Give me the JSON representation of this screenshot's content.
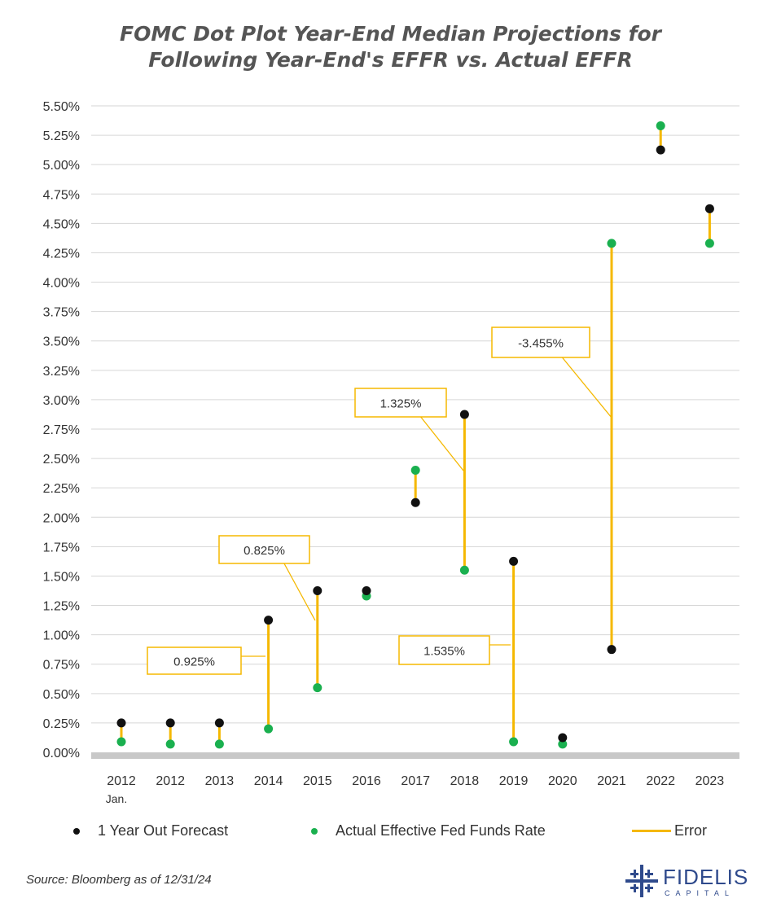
{
  "title": {
    "line1": "FOMC Dot Plot Year-End Median Projections for",
    "line2": "Following Year-End's EFFR vs. Actual EFFR"
  },
  "chart_data": {
    "type": "scatter",
    "categories": [
      "2012",
      "2012",
      "2013",
      "2014",
      "2015",
      "2016",
      "2017",
      "2018",
      "2019",
      "2020",
      "2021",
      "2022",
      "2023"
    ],
    "category_sublabels": [
      "Jan.",
      "",
      "",
      "",
      "",
      "",
      "",
      "",
      "",
      "",
      "",
      "",
      ""
    ],
    "y_ticks": [
      "0.00%",
      "0.25%",
      "0.50%",
      "0.75%",
      "1.00%",
      "1.25%",
      "1.50%",
      "1.75%",
      "2.00%",
      "2.25%",
      "2.50%",
      "2.75%",
      "3.00%",
      "3.25%",
      "3.50%",
      "3.75%",
      "4.00%",
      "4.25%",
      "4.50%",
      "4.75%",
      "5.00%",
      "5.25%",
      "5.50%"
    ],
    "ylim": [
      0,
      5.5
    ],
    "grid": true,
    "legend_position": "bottom",
    "series": [
      {
        "name": "1 Year Out Forecast",
        "color": "#111111",
        "values": [
          0.25,
          0.25,
          0.25,
          1.125,
          1.375,
          1.375,
          2.125,
          2.875,
          1.625,
          0.125,
          0.875,
          5.125,
          4.625
        ]
      },
      {
        "name": "Actual Effective Fed Funds Rate",
        "color": "#1ab04f",
        "values": [
          0.09,
          0.07,
          0.07,
          0.2,
          0.55,
          1.33,
          2.4,
          1.55,
          0.09,
          0.07,
          4.33,
          5.33,
          4.33
        ]
      },
      {
        "name": "Error",
        "color": "#f5b800"
      }
    ],
    "annotations": [
      {
        "text": "0.925%",
        "category_index": 3
      },
      {
        "text": "0.825%",
        "category_index": 4
      },
      {
        "text": "1.325%",
        "category_index": 7
      },
      {
        "text": "1.535%",
        "category_index": 8
      },
      {
        "text": "-3.455%",
        "category_index": 10
      }
    ]
  },
  "source": "Source: Bloomberg as of 12/31/24",
  "logo": {
    "name": "FIDELIS",
    "sub": "CAPITAL"
  }
}
